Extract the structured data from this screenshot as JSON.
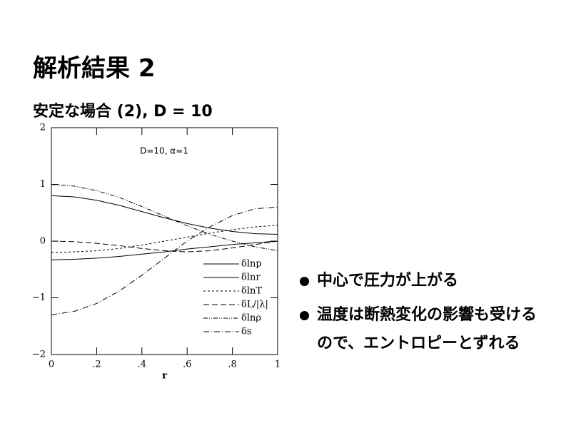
{
  "title": "解析結果 2",
  "subtitle": "安定な場合 (2), D = 10",
  "bullets": [
    "中心で圧力が上がる",
    "温度は断熱変化の影響も受けるので、エントロピーとずれる"
  ],
  "chart_data": {
    "type": "line",
    "annotation": "D=10, α=1",
    "xlabel": "r",
    "x": [
      0,
      0.1,
      0.2,
      0.3,
      0.4,
      0.5,
      0.6,
      0.7,
      0.8,
      0.9,
      1.0
    ],
    "xlim": [
      0,
      1
    ],
    "ylim": [
      -2,
      2
    ],
    "xticks": [
      0,
      {
        "value": 0.2,
        "label": ".2"
      },
      {
        "value": 0.4,
        "label": ".4"
      },
      {
        "value": 0.6,
        "label": ".6"
      },
      {
        "value": 0.8,
        "label": ".8"
      },
      1
    ],
    "yticks": [
      {
        "value": -2,
        "label": "−2"
      },
      {
        "value": -1,
        "label": "−1"
      },
      0,
      1,
      2
    ],
    "legend": "lower right",
    "series": [
      {
        "name": "δlnp",
        "color": "#000000",
        "dash": "none",
        "values": [
          0.8,
          0.78,
          0.72,
          0.63,
          0.52,
          0.41,
          0.31,
          0.23,
          0.17,
          0.13,
          0.12
        ]
      },
      {
        "name": "δlnr",
        "color": "#000000",
        "dash": "none",
        "values": [
          -0.33,
          -0.32,
          -0.3,
          -0.27,
          -0.23,
          -0.19,
          -0.14,
          -0.1,
          -0.06,
          -0.03,
          0.0
        ]
      },
      {
        "name": "δlnT",
        "color": "#000000",
        "dash": "3 3",
        "values": [
          -0.2,
          -0.19,
          -0.17,
          -0.13,
          -0.07,
          0.0,
          0.07,
          0.14,
          0.2,
          0.25,
          0.28
        ]
      },
      {
        "name": "δL/|λ|",
        "color": "#000000",
        "dash": "8 4",
        "values": [
          0.0,
          -0.01,
          -0.04,
          -0.08,
          -0.13,
          -0.17,
          -0.19,
          -0.17,
          -0.12,
          -0.06,
          0.0
        ]
      },
      {
        "name": "δlnρ",
        "color": "#000000",
        "dash": "6 2 1 2 1 2",
        "values": [
          1.0,
          0.97,
          0.89,
          0.77,
          0.61,
          0.44,
          0.27,
          0.12,
          0.0,
          -0.1,
          -0.17
        ]
      },
      {
        "name": "δs",
        "color": "#000000",
        "dash": "8 3 1 3",
        "values": [
          -1.3,
          -1.24,
          -1.1,
          -0.88,
          -0.6,
          -0.3,
          0.0,
          0.25,
          0.45,
          0.57,
          0.6
        ]
      }
    ]
  }
}
